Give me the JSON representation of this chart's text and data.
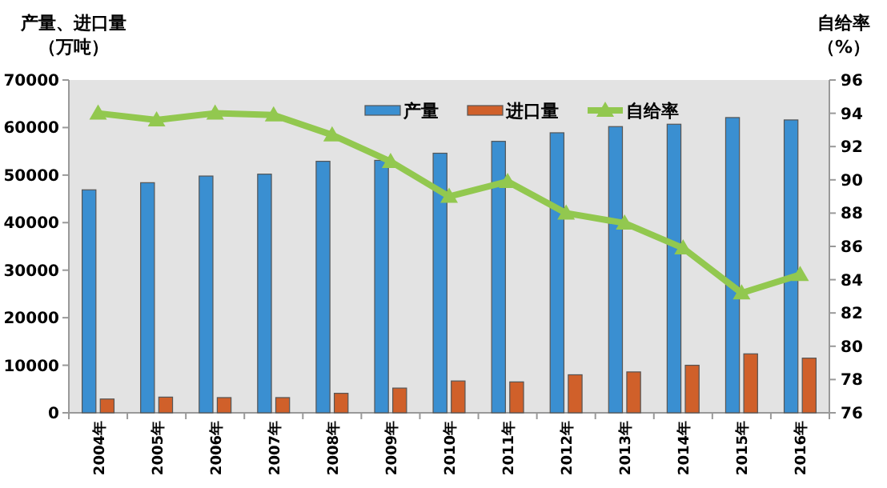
{
  "chart_data": {
    "type": "bar",
    "ylabel": "产量、进口量（万吨）",
    "y2label": "自给率（%）",
    "categories": [
      "2004年",
      "2005年",
      "2006年",
      "2007年",
      "2008年",
      "2009年",
      "2010年",
      "2011年",
      "2012年",
      "2013年",
      "2014年",
      "2015年",
      "2016年"
    ],
    "series": [
      {
        "name": "产量",
        "color": "#3a8fd1",
        "values": [
          46900,
          48400,
          49800,
          50200,
          52900,
          53100,
          54600,
          57100,
          58900,
          60200,
          60700,
          62100,
          61600
        ]
      },
      {
        "name": "进口量",
        "color": "#d0602a",
        "values": [
          2900,
          3300,
          3200,
          3200,
          4100,
          5200,
          6700,
          6500,
          8000,
          8600,
          10000,
          12400,
          11500
        ]
      },
      {
        "name": "自给率",
        "color": "#92c84f",
        "type": "line",
        "axis": "y2",
        "marker": "triangle",
        "values": [
          94.0,
          93.6,
          94.0,
          93.9,
          92.7,
          91.1,
          89.0,
          89.9,
          88.0,
          87.4,
          85.9,
          83.2,
          84.3
        ]
      }
    ],
    "ylim": [
      0,
      70000
    ],
    "yticks": [
      0,
      10000,
      20000,
      30000,
      40000,
      50000,
      60000,
      70000
    ],
    "y2lim": [
      76,
      96
    ],
    "y2ticks": [
      76,
      78,
      80,
      82,
      84,
      86,
      88,
      90,
      92,
      94,
      96
    ],
    "legend": "top right",
    "grid": false
  }
}
